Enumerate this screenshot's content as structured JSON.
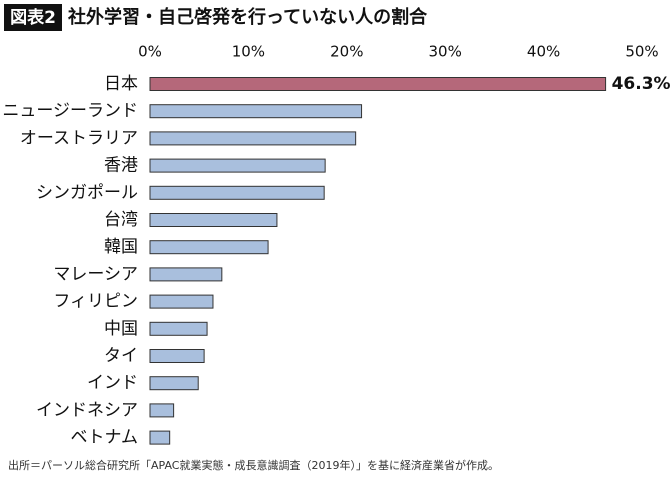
{
  "chart_data": {
    "type": "bar",
    "orientation": "horizontal",
    "label": "図表2",
    "title": "社外学習・自己啓発を行っていない人の割合",
    "source": "出所＝パーソル総合研究所「APAC就業実態・成長意識調査（2019年）」を基に経済産業省が作成。",
    "categories": [
      "日本",
      "ニュージーランド",
      "オーストラリア",
      "香港",
      "シンガポール",
      "台湾",
      "韓国",
      "マレーシア",
      "フィリピン",
      "中国",
      "タイ",
      "インド",
      "インドネシア",
      "ベトナム"
    ],
    "values": [
      46.3,
      21.5,
      20.9,
      17.8,
      17.7,
      12.9,
      12.0,
      7.3,
      6.4,
      5.8,
      5.5,
      4.9,
      2.4,
      2.0
    ],
    "value_labels": [
      "46.3%",
      null,
      null,
      null,
      null,
      null,
      null,
      null,
      null,
      null,
      null,
      null,
      null,
      null
    ],
    "colors": [
      "#b5687a",
      "#a9bfdd",
      "#a9bfdd",
      "#a9bfdd",
      "#a9bfdd",
      "#a9bfdd",
      "#a9bfdd",
      "#a9bfdd",
      "#a9bfdd",
      "#a9bfdd",
      "#a9bfdd",
      "#a9bfdd",
      "#a9bfdd",
      "#a9bfdd"
    ],
    "xlim": [
      0,
      50
    ],
    "xticks": [
      {
        "value": 0,
        "label": "0%"
      },
      {
        "value": 10,
        "label": "10%"
      },
      {
        "value": 20,
        "label": "20%"
      },
      {
        "value": 30,
        "label": "30%"
      },
      {
        "value": 40,
        "label": "40%"
      },
      {
        "value": 50,
        "label": "50%"
      }
    ],
    "grid": false
  }
}
